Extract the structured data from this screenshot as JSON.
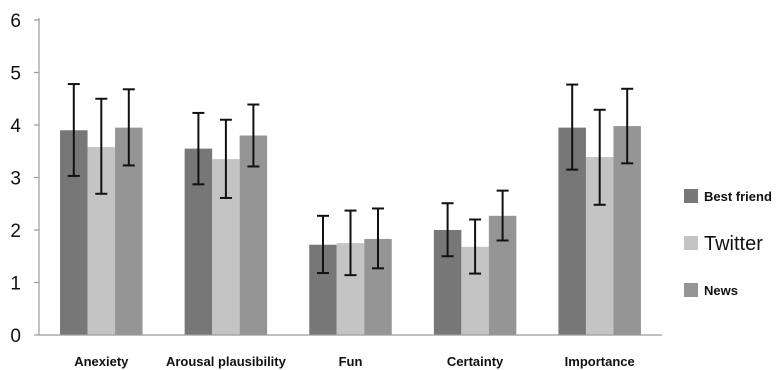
{
  "chart_data": {
    "type": "bar",
    "title": "",
    "xlabel": "",
    "ylabel": "",
    "ylim": [
      0,
      6
    ],
    "yticks": [
      0,
      1,
      2,
      3,
      4,
      5,
      6
    ],
    "grid": false,
    "legend_position": "right",
    "categories": [
      "Anexiety",
      "Arousal plausibility",
      "Fun",
      "Certainty",
      "Importance"
    ],
    "series": [
      {
        "name": "Best friend",
        "color": "#777777",
        "values": [
          3.9,
          3.55,
          1.72,
          2.0,
          3.95
        ],
        "error_low": [
          3.03,
          2.87,
          1.18,
          1.5,
          3.15
        ],
        "error_high": [
          4.78,
          4.23,
          2.27,
          2.51,
          4.77
        ]
      },
      {
        "name": "Twitter",
        "color": "#c4c4c4",
        "values": [
          3.58,
          3.35,
          1.75,
          1.68,
          3.39
        ],
        "error_low": [
          2.69,
          2.61,
          1.14,
          1.17,
          2.48
        ],
        "error_high": [
          4.5,
          4.1,
          2.37,
          2.2,
          4.29
        ]
      },
      {
        "name": "News",
        "color": "#959595",
        "values": [
          3.95,
          3.8,
          1.83,
          2.27,
          3.98
        ],
        "error_low": [
          3.23,
          3.21,
          1.27,
          1.8,
          3.27
        ],
        "error_high": [
          4.68,
          4.39,
          2.41,
          2.75,
          4.69
        ]
      }
    ]
  }
}
